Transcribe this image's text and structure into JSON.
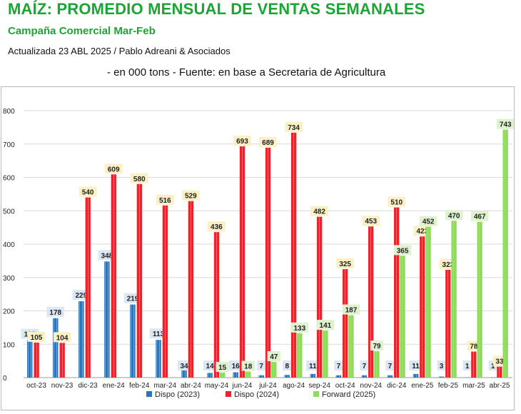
{
  "header": {
    "title": "MAÍZ: PROMEDIO MENSUAL DE VENTAS SEMANALES",
    "subtitle": "Campaña Comercial Mar-Feb",
    "updated": "Actualizada  23 ABL   2025 / Pablo Adreani & Asociados",
    "source": "- en 000 tons - Fuente: en base a Secretaria de Agricultura"
  },
  "colors": {
    "title_green": "#1aa534",
    "dispo_2023": "#2e75b6",
    "dispo_2024": "#e8242f",
    "forward_2025": "#8fdc5a"
  },
  "chart_data": {
    "type": "bar",
    "title": "",
    "xlabel": "",
    "ylabel": "",
    "ylim": [
      0,
      800
    ],
    "yticks": [
      0,
      100,
      200,
      300,
      400,
      500,
      600,
      700,
      800
    ],
    "grid": true,
    "legend_position": "bottom",
    "categories": [
      "oct-23",
      "nov-23",
      "dic-23",
      "ene-24",
      "feb-24",
      "mar-24",
      "abr-24",
      "may-24",
      "jun-24",
      "jul-24",
      "ago-24",
      "sep-24",
      "oct-24",
      "nov-24",
      "dic-24",
      "ene-25",
      "feb-25",
      "mar-25",
      "abr-25"
    ],
    "series": [
      {
        "name": "Dispo (2023)",
        "key": "dispo_2023",
        "values": [
          112,
          178,
          229,
          348,
          219,
          113,
          34,
          14,
          16,
          7,
          8,
          11,
          7,
          7,
          7,
          11,
          3,
          1,
          1
        ]
      },
      {
        "name": "Dispo (2024)",
        "key": "dispo_2024",
        "values": [
          105,
          104,
          540,
          609,
          580,
          516,
          529,
          436,
          693,
          689,
          734,
          482,
          325,
          453,
          510,
          423,
          323,
          78,
          33
        ]
      },
      {
        "name": "Forward (2025)",
        "key": "forward_2025",
        "values": [
          null,
          null,
          null,
          null,
          null,
          null,
          null,
          15,
          18,
          47,
          133,
          141,
          187,
          79,
          365,
          452,
          470,
          467,
          743
        ]
      }
    ]
  }
}
